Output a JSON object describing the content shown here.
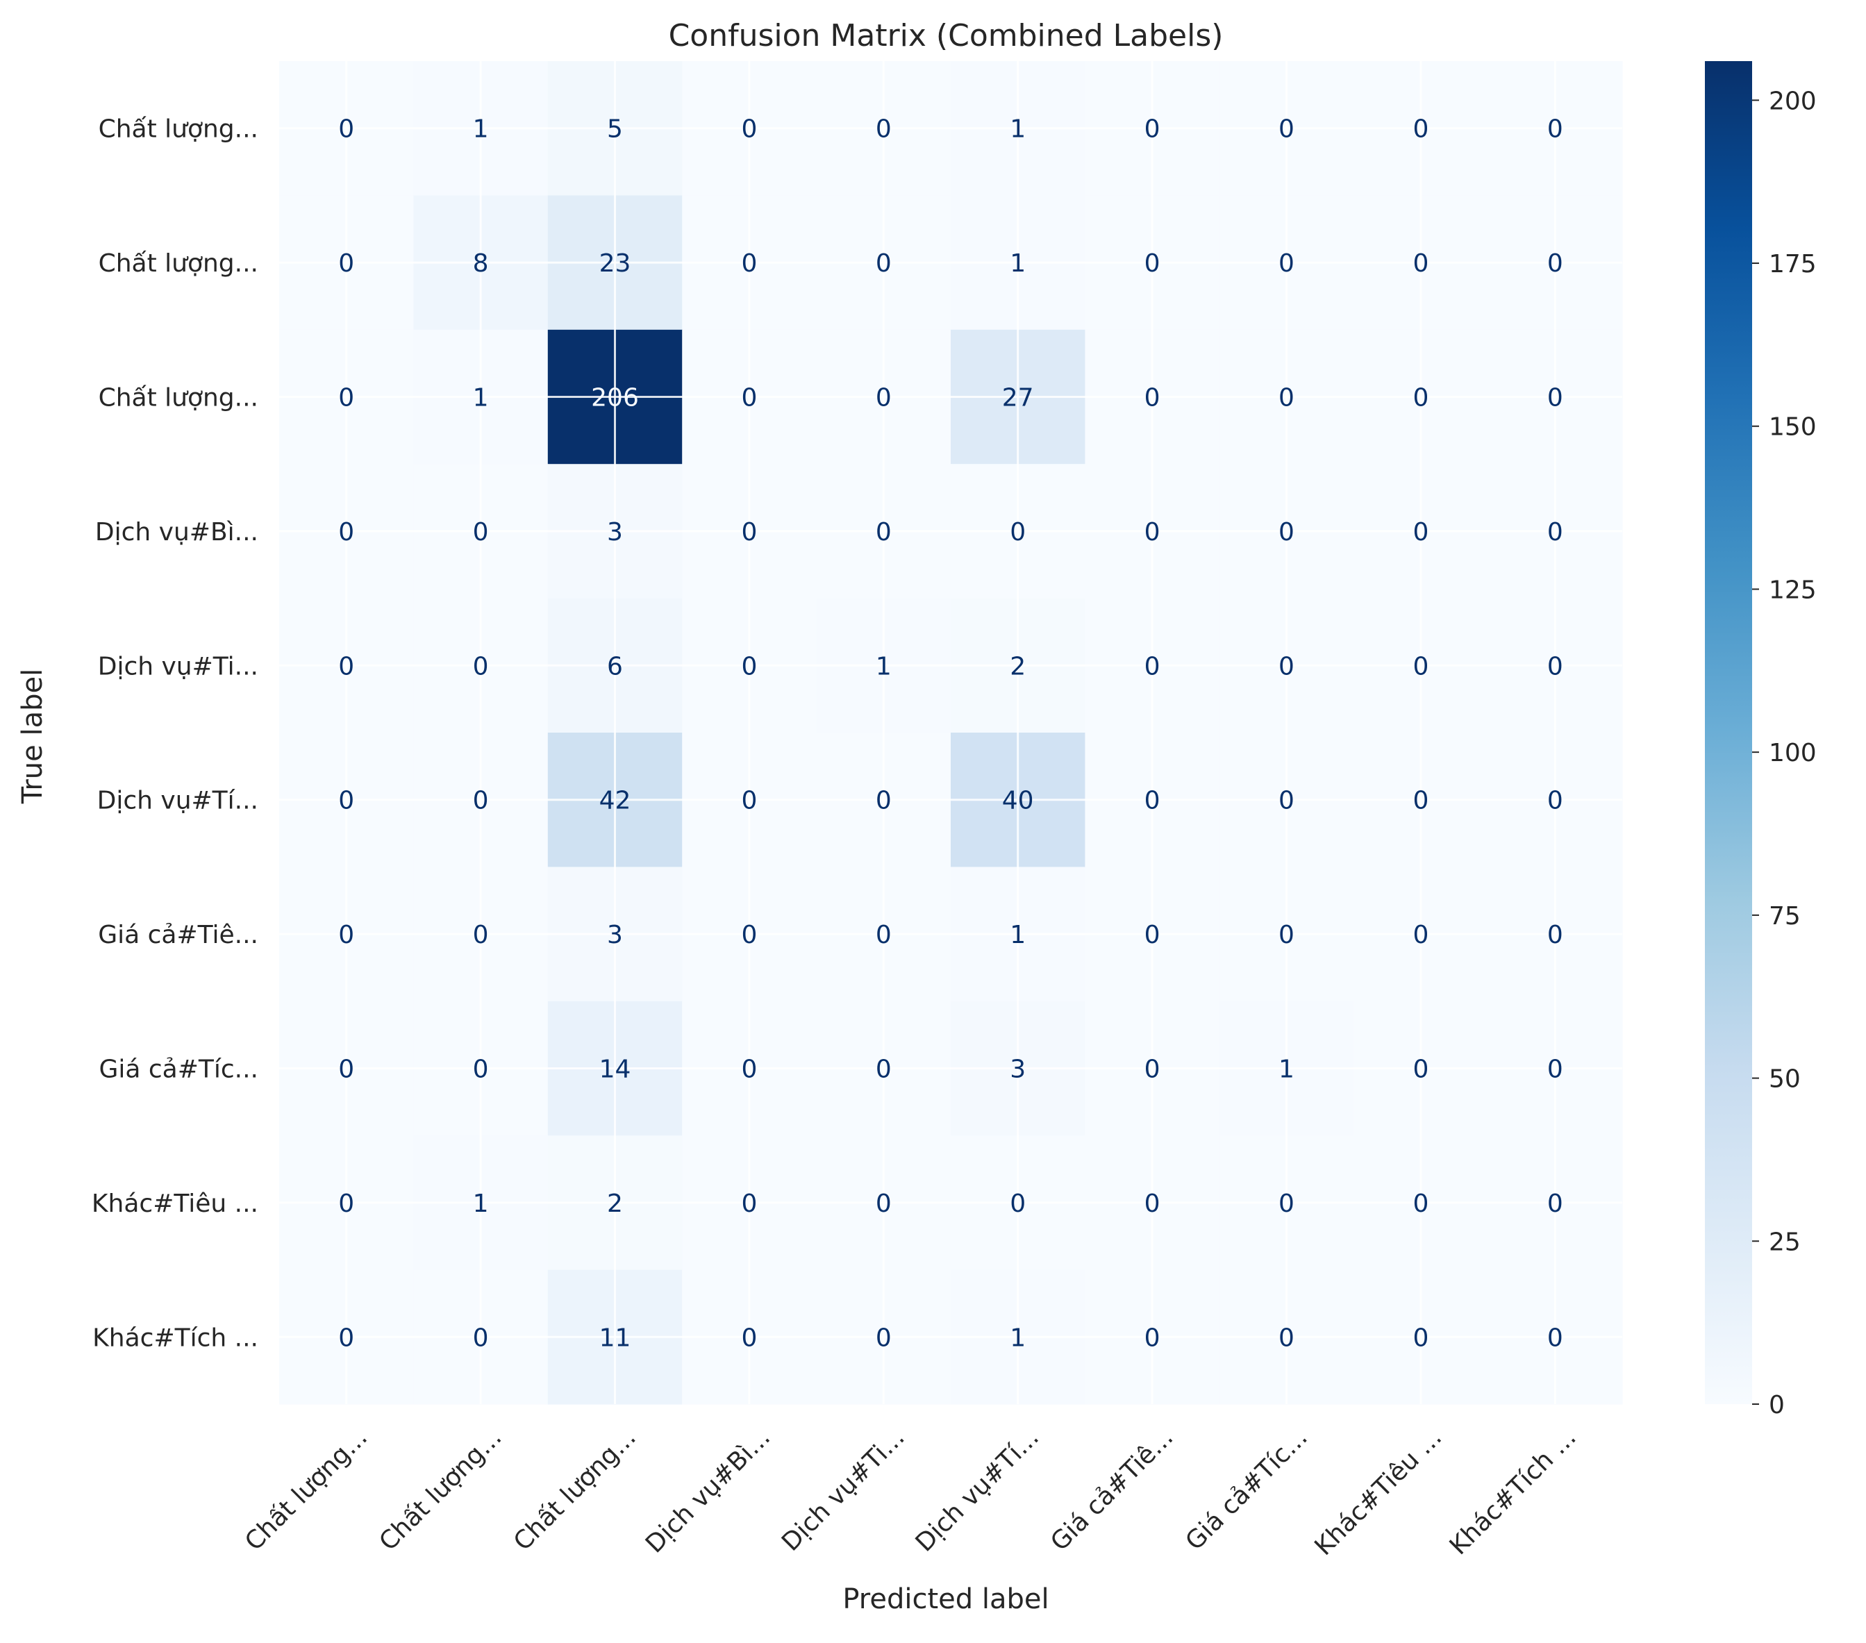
{
  "chart_data": {
    "type": "heatmap",
    "title": "Confusion Matrix (Combined Labels)",
    "xlabel": "Predicted label",
    "ylabel": "True label",
    "x_tick_labels": [
      "Chất lượng...",
      "Chất lượng...",
      "Chất lượng...",
      "Dịch vụ#Bì...",
      "Dịch vụ#Ti...",
      "Dịch vụ#Tí...",
      "Giá cả#Tiê...",
      "Giá cả#Tíc...",
      "Khác#Tiêu ...",
      "Khác#Tích ..."
    ],
    "y_tick_labels": [
      "Chất lượng...",
      "Chất lượng...",
      "Chất lượng...",
      "Dịch vụ#Bì...",
      "Dịch vụ#Ti...",
      "Dịch vụ#Tí...",
      "Giá cả#Tiê...",
      "Giá cả#Tíc...",
      "Khác#Tiêu ...",
      "Khác#Tích ..."
    ],
    "matrix": [
      [
        0,
        1,
        5,
        0,
        0,
        1,
        0,
        0,
        0,
        0
      ],
      [
        0,
        8,
        23,
        0,
        0,
        1,
        0,
        0,
        0,
        0
      ],
      [
        0,
        1,
        206,
        0,
        0,
        27,
        0,
        0,
        0,
        0
      ],
      [
        0,
        0,
        3,
        0,
        0,
        0,
        0,
        0,
        0,
        0
      ],
      [
        0,
        0,
        6,
        0,
        1,
        2,
        0,
        0,
        0,
        0
      ],
      [
        0,
        0,
        42,
        0,
        0,
        40,
        0,
        0,
        0,
        0
      ],
      [
        0,
        0,
        3,
        0,
        0,
        1,
        0,
        0,
        0,
        0
      ],
      [
        0,
        0,
        14,
        0,
        0,
        3,
        0,
        1,
        0,
        0
      ],
      [
        0,
        1,
        2,
        0,
        0,
        0,
        0,
        0,
        0,
        0
      ],
      [
        0,
        0,
        11,
        0,
        0,
        1,
        0,
        0,
        0,
        0
      ]
    ],
    "colormap": "Blues",
    "value_range": [
      0,
      206
    ],
    "colorbar_ticks": [
      0,
      25,
      50,
      75,
      100,
      125,
      150,
      175,
      200
    ],
    "grid": true,
    "colors": {
      "cmap_low": "#f7fbff",
      "cmap_high": "#08306b",
      "text_dark": "#08306b",
      "text_light": "#f7fbff",
      "grid": "#ffffff"
    }
  }
}
